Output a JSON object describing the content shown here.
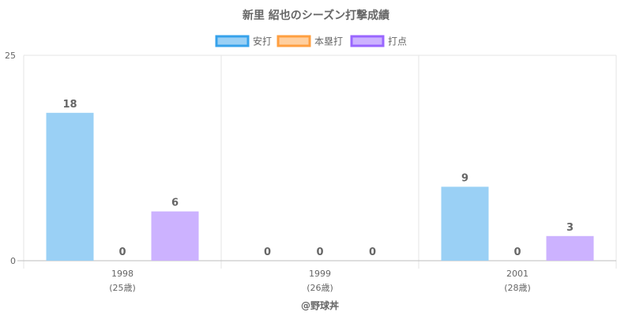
{
  "chart_data": {
    "type": "bar",
    "title": "新里 紹也のシーズン打撃成績",
    "categories": [
      {
        "year": "1998",
        "age": "(25歳)"
      },
      {
        "year": "1999",
        "age": "(26歳)"
      },
      {
        "year": "2001",
        "age": "(28歳)"
      }
    ],
    "series": [
      {
        "name": "安打",
        "values": [
          18,
          0,
          9
        ],
        "fill": "#9ad0f5",
        "stroke": "#36a2eb"
      },
      {
        "name": "本塁打",
        "values": [
          0,
          0,
          0
        ],
        "fill": "#ffcf9f",
        "stroke": "#ff9f40"
      },
      {
        "name": "打点",
        "values": [
          6,
          0,
          3
        ],
        "fill": "#ccb2ff",
        "stroke": "#9966ff"
      }
    ],
    "ylim": [
      0,
      25
    ],
    "yticks": [
      "0",
      "25"
    ],
    "grid": true,
    "legend_position": "top",
    "xlabel": "",
    "ylabel": ""
  },
  "credit": "@野球丼"
}
